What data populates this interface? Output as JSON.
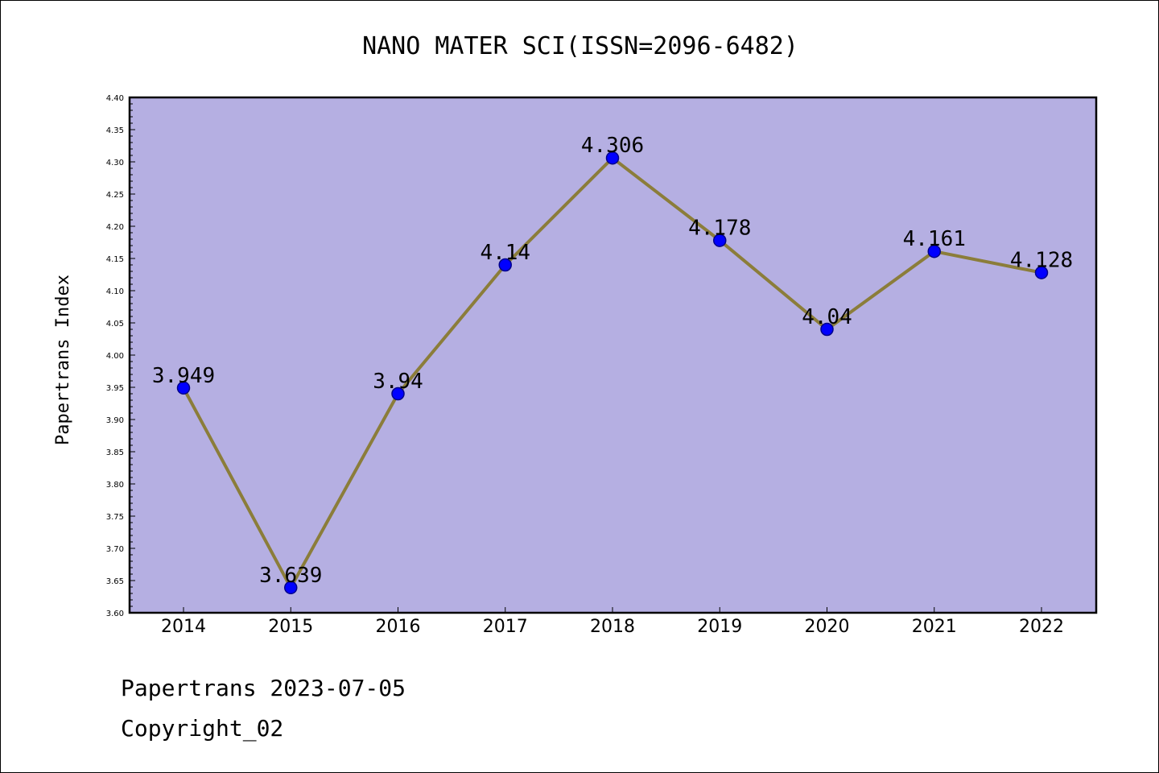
{
  "chart_data": {
    "type": "line",
    "title": "NANO MATER SCI(ISSN=2096-6482)",
    "ylabel": "Papertrans Index",
    "xlabel": "",
    "categories": [
      "2014",
      "2015",
      "2016",
      "2017",
      "2018",
      "2019",
      "2020",
      "2021",
      "2022"
    ],
    "series": [
      {
        "values": [
          3.949,
          3.639,
          3.94,
          4.14,
          4.306,
          4.178,
          4.04,
          4.161,
          4.128
        ],
        "labels": [
          "3.949",
          "3.639",
          "3.94",
          "4.14",
          "4.306",
          "4.178",
          "4.04",
          "4.161",
          "4.128"
        ]
      }
    ],
    "ylim": [
      3.6,
      4.4
    ],
    "yticks": [
      "3.60",
      "3.65",
      "3.70",
      "3.75",
      "3.80",
      "3.85",
      "3.90",
      "3.95",
      "4.00",
      "4.05",
      "4.10",
      "4.15",
      "4.20",
      "4.25",
      "4.30",
      "4.35",
      "4.40"
    ],
    "grid": false,
    "legend": "none",
    "colors": {
      "plot_background": "#b5afe2",
      "line": "#8b7d3a",
      "marker_fill": "#0000ff",
      "marker_edge": "#00008b",
      "axes": "#000000"
    }
  },
  "footer": {
    "line1": "Papertrans 2023-07-05",
    "line2": "Copyright_02"
  }
}
